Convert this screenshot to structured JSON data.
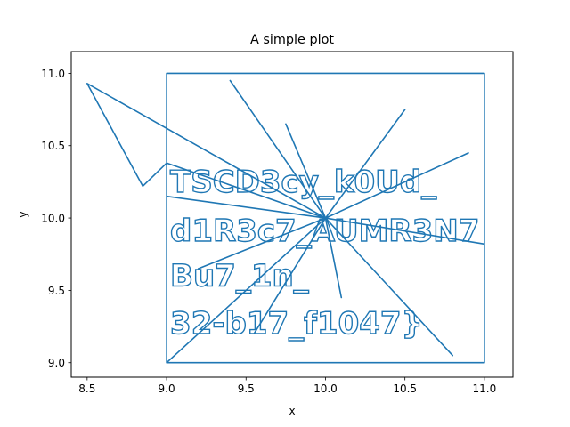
{
  "chart_data": {
    "type": "line",
    "title": "A simple plot",
    "xlabel": "x",
    "ylabel": "y",
    "xlim": [
      8.4,
      11.18
    ],
    "ylim": [
      8.9,
      11.15
    ],
    "xticks": [
      "8.5",
      "9.0",
      "9.5",
      "10.0",
      "10.5",
      "11.0"
    ],
    "yticks": [
      "9.0",
      "9.5",
      "10.0",
      "10.5",
      "11.0"
    ],
    "grid": false,
    "legend": "none",
    "series": [
      {
        "color": "#1f77b4",
        "x": [
          9.0,
          11.0,
          11.0,
          9.0,
          9.0,
          10.0,
          8.5,
          8.85,
          9.0,
          10.0,
          9.0,
          10.0,
          11.0,
          10.0,
          9.4,
          10.0,
          9.75,
          10.0,
          10.5,
          10.0,
          10.9,
          10.0,
          9.2,
          10.0,
          9.55,
          10.0,
          10.1,
          10.0,
          10.8,
          10.0
        ],
        "y": [
          9.0,
          9.0,
          11.0,
          11.0,
          9.0,
          10.0,
          10.93,
          10.22,
          10.38,
          10.0,
          10.15,
          10.0,
          9.82,
          10.0,
          10.95,
          10.0,
          10.65,
          10.0,
          10.75,
          10.0,
          10.45,
          10.0,
          9.65,
          10.0,
          9.2,
          10.0,
          9.45,
          10.0,
          9.05,
          10.0
        ]
      }
    ],
    "annotations": [
      {
        "text": "TSCD3cy_k0Ud_",
        "x": 9.0,
        "y": 10.18
      },
      {
        "text": "d1R3c7_AUMR3N7",
        "x": 9.0,
        "y": 9.84
      },
      {
        "text": "Bu7_1n_",
        "x": 9.0,
        "y": 9.53
      },
      {
        "text": "32-b17_f1047}",
        "x": 9.0,
        "y": 9.2
      }
    ]
  }
}
